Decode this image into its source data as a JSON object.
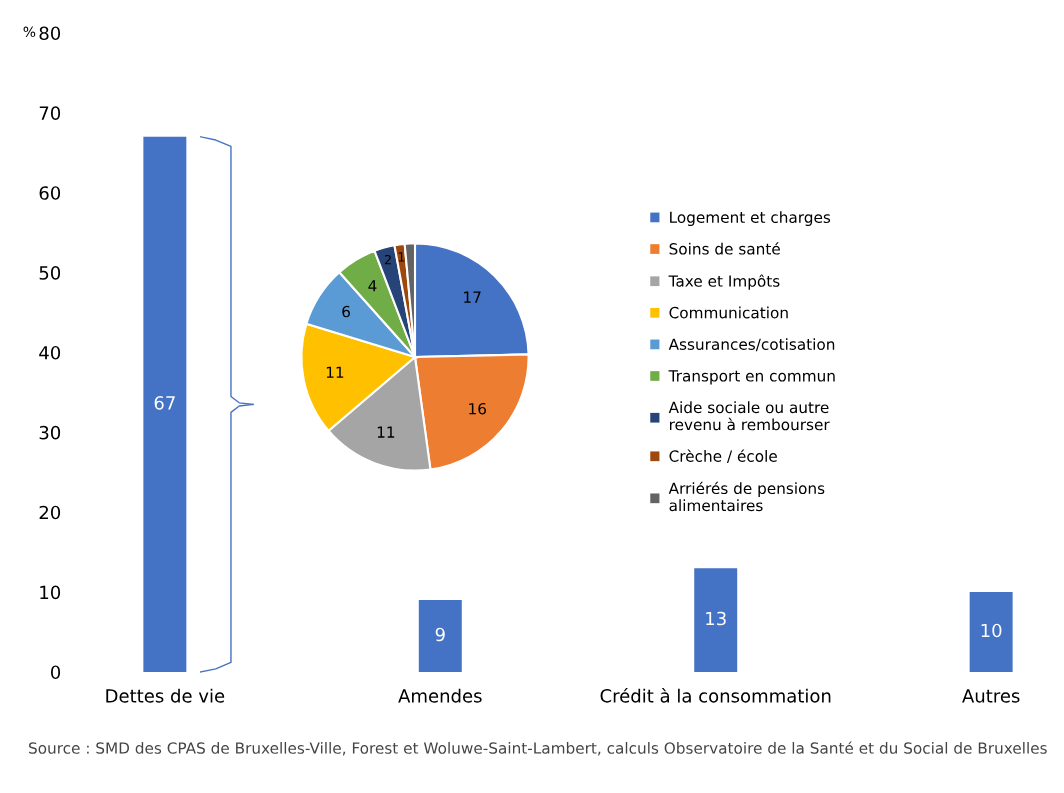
{
  "chart_data": [
    {
      "type": "bar",
      "ylabel": "%",
      "categories": [
        "Dettes de vie",
        "Amendes",
        "Crédit à la consommation",
        "Autres"
      ],
      "values": [
        67,
        9,
        13,
        10
      ],
      "color": "#4472c4",
      "ylim": [
        0,
        80
      ],
      "yticks": [
        0,
        10,
        20,
        30,
        40,
        50,
        60,
        70,
        80
      ],
      "data_labels": true,
      "grid": false,
      "annotations": [
        "Source : SMD des CPAS de Bruxelles-Ville, Forest et Woluwe-Saint-Lambert, calculs Observatoire de la Santé et du Social de Bruxelles"
      ]
    },
    {
      "type": "pie",
      "categories": [
        "Logement et charges",
        "Soins de santé",
        "Taxe et Impôts",
        "Communication",
        "Assurances/cotisation",
        "Transport en commun",
        "Aide sociale ou autre\nrevenu à rembourser",
        "Crèche / école",
        "Arriérés de pensions\nalimentaires"
      ],
      "values": [
        17,
        16,
        11,
        11,
        6,
        4,
        2,
        1,
        1
      ],
      "value_labels": [
        "17",
        "16",
        "11",
        "11",
        "6",
        "4",
        "2",
        "1",
        null
      ],
      "colors": [
        "#4472c4",
        "#ed7d31",
        "#a5a5a5",
        "#ffc000",
        "#5b9bd5",
        "#70ad47",
        "#264478",
        "#9e480e",
        "#636363"
      ],
      "legend": "right"
    }
  ]
}
